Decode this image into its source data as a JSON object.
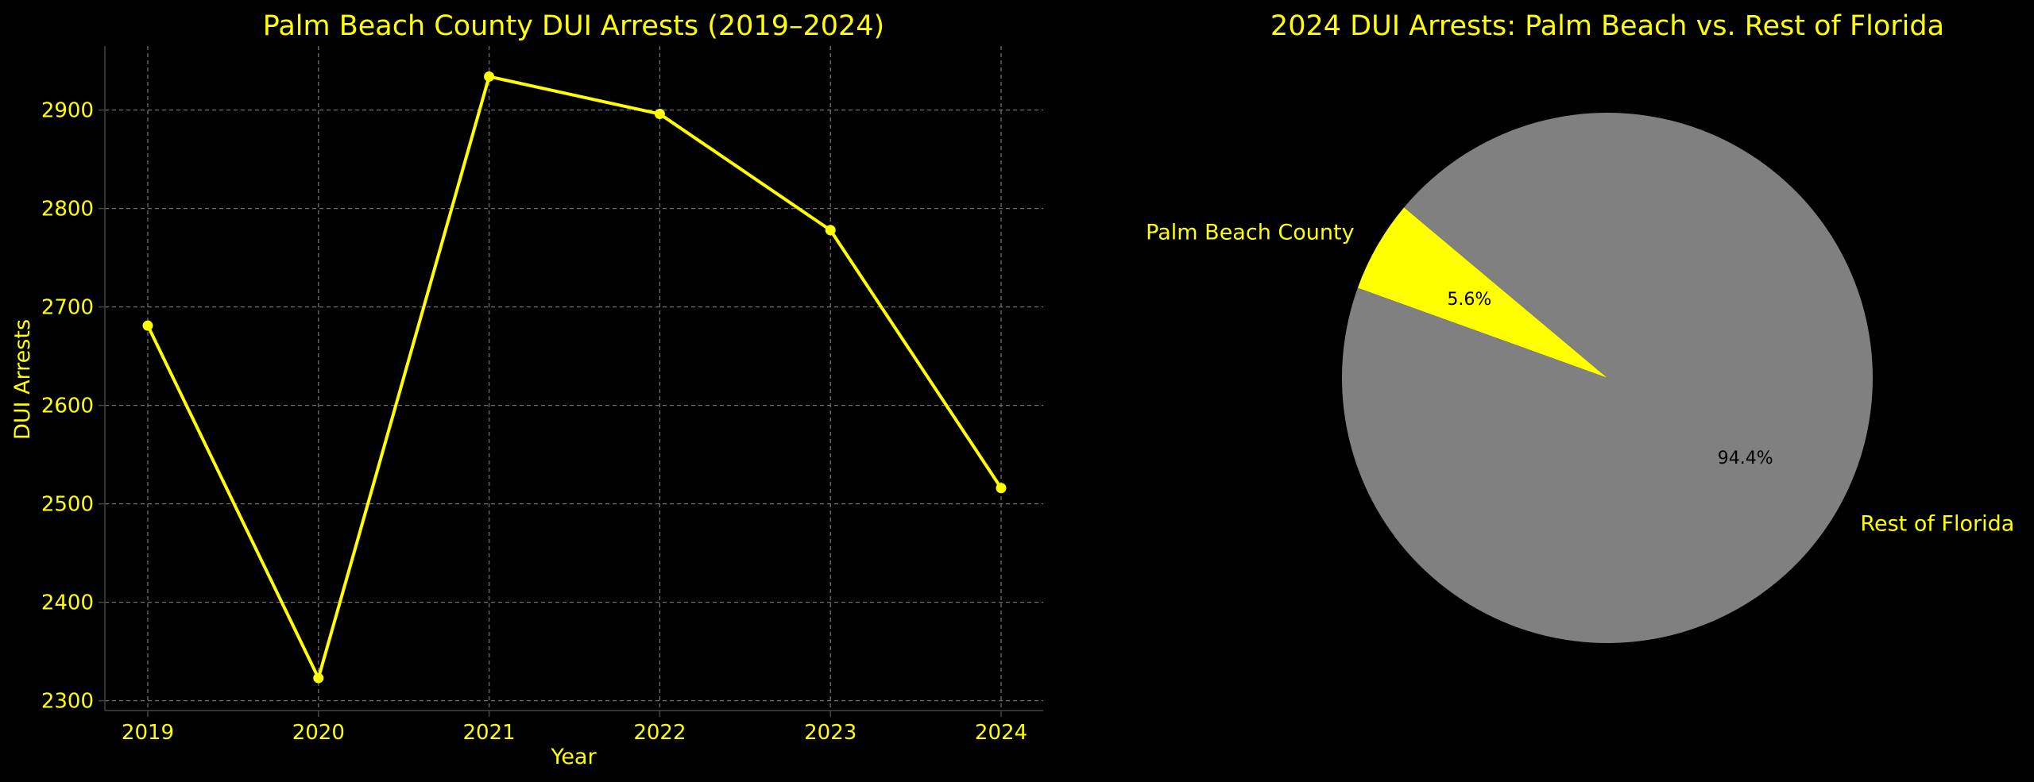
{
  "colors": {
    "background": "#000000",
    "text": "#ffff00",
    "line": "#ffff00",
    "grid": "#6e6e6e",
    "axis": "#444444",
    "slice_palm_beach": "#ffff00",
    "slice_rest": "#808080",
    "pct_text": "#000000"
  },
  "chart_data": [
    {
      "type": "line",
      "title": "Palm Beach County DUI Arrests (2019–2024)",
      "xlabel": "Year",
      "ylabel": "DUI Arrests",
      "x": [
        "2019",
        "2020",
        "2021",
        "2022",
        "2023",
        "2024"
      ],
      "series": [
        {
          "values": [
            2681,
            2323,
            2934,
            2896,
            2778,
            2516
          ]
        }
      ],
      "y_ticks": [
        "2300",
        "2400",
        "2500",
        "2600",
        "2700",
        "2800",
        "2900"
      ],
      "ylim": [
        2290,
        2965
      ],
      "grid": true,
      "marker": "circle"
    },
    {
      "type": "pie",
      "title": "2024 DUI Arrests: Palm Beach vs. Rest of Florida",
      "slices": [
        {
          "label": "Palm Beach County",
          "value": 5.6,
          "pct_label": "5.6%"
        },
        {
          "label": "Rest of Florida",
          "value": 94.4,
          "pct_label": "94.4%"
        }
      ],
      "start_angle": 140
    }
  ]
}
